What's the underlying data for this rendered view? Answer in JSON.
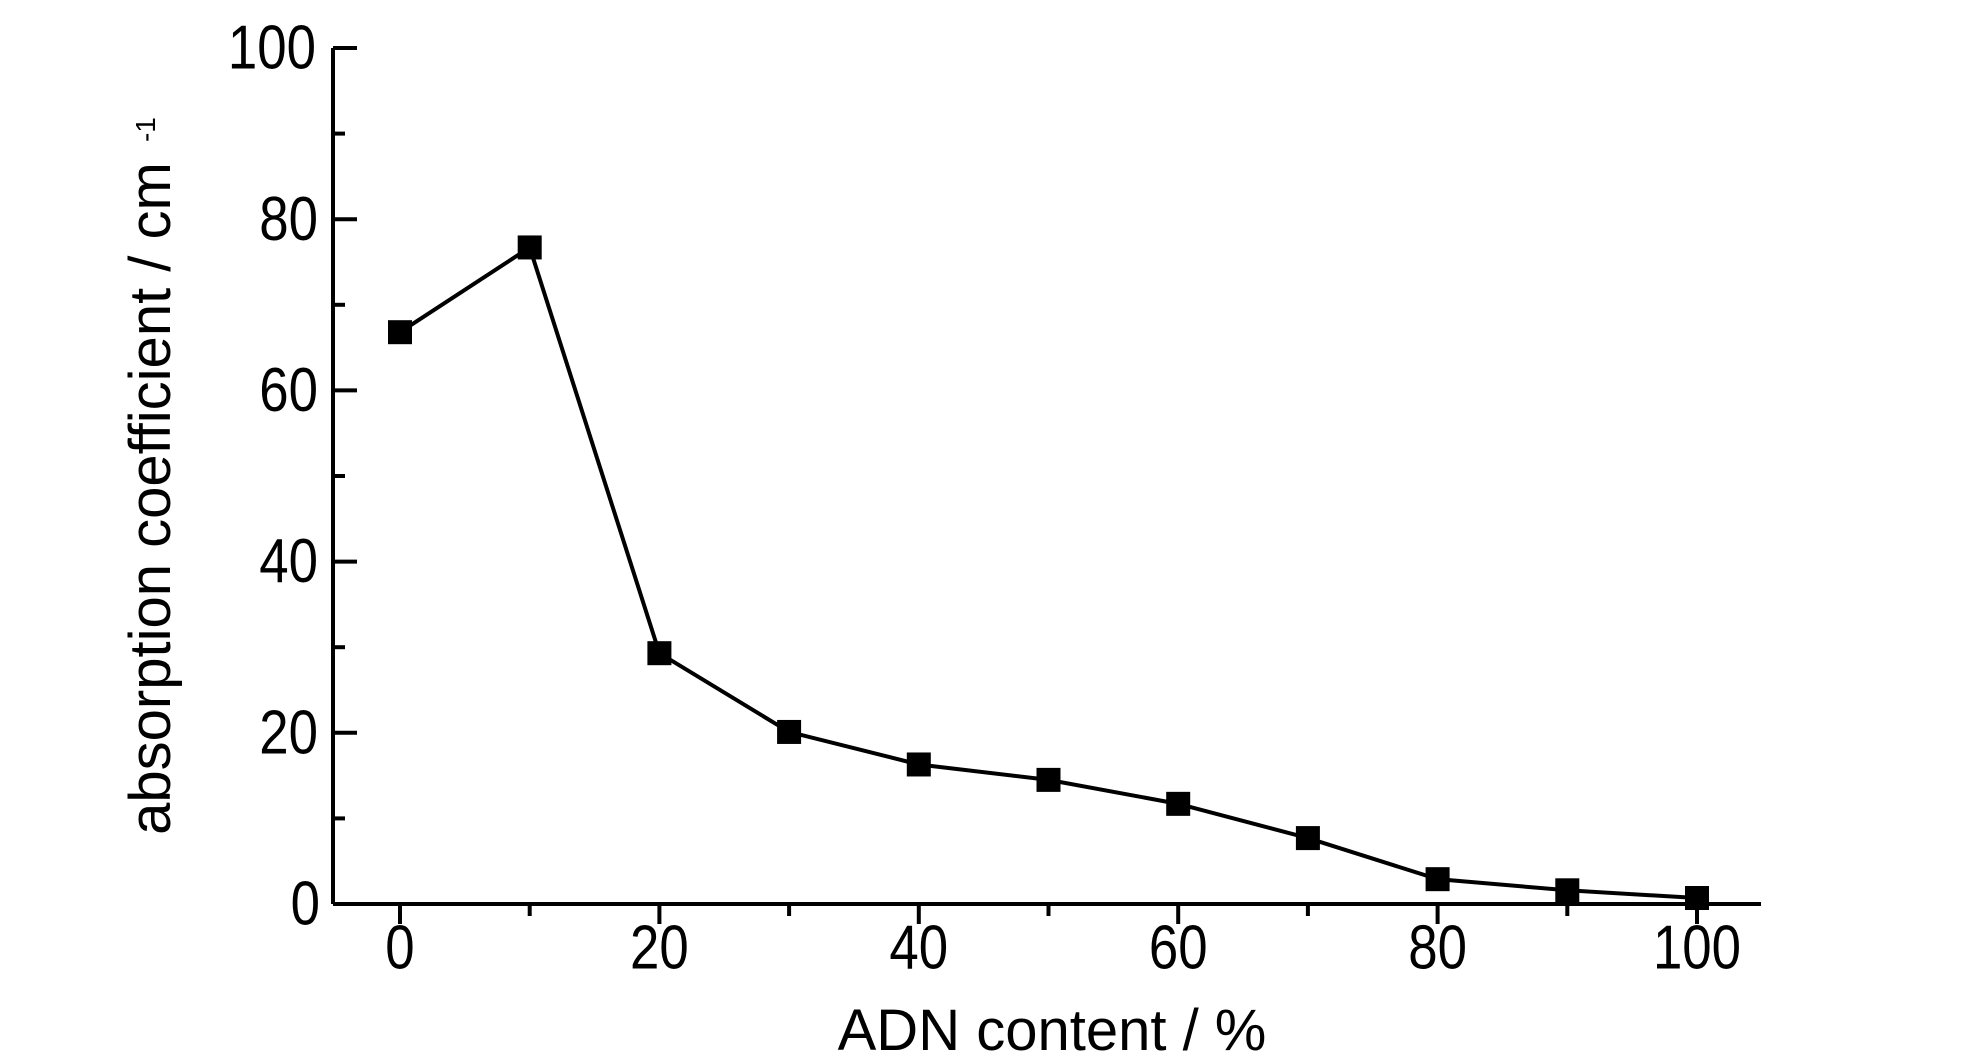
{
  "chart_data": {
    "type": "line",
    "title": "",
    "xlabel": "ADN content / %",
    "ylabel": {
      "text": "absorption coefficient / cm",
      "superscript": "-1"
    },
    "xlim": [
      -5,
      105
    ],
    "ylim": [
      0,
      100
    ],
    "xticks": [
      0,
      20,
      40,
      60,
      80,
      100
    ],
    "yticks": [
      0,
      20,
      40,
      60,
      80,
      100
    ],
    "x_minor_ticks": [
      10,
      30,
      50,
      70,
      90
    ],
    "y_minor_ticks": [
      10,
      30,
      50,
      70,
      90
    ],
    "grid": false,
    "legend": false,
    "marker": "square",
    "series": [
      {
        "x": [
          0,
          10,
          20,
          30,
          40,
          50,
          60,
          70,
          80,
          90,
          100
        ],
        "y": [
          66.8,
          76.7,
          29.3,
          20.1,
          16.3,
          14.5,
          11.7,
          7.7,
          2.9,
          1.6,
          0.7
        ]
      }
    ],
    "colors": {
      "line": "#000000",
      "marker": "#000000",
      "axis": "#000000"
    }
  }
}
